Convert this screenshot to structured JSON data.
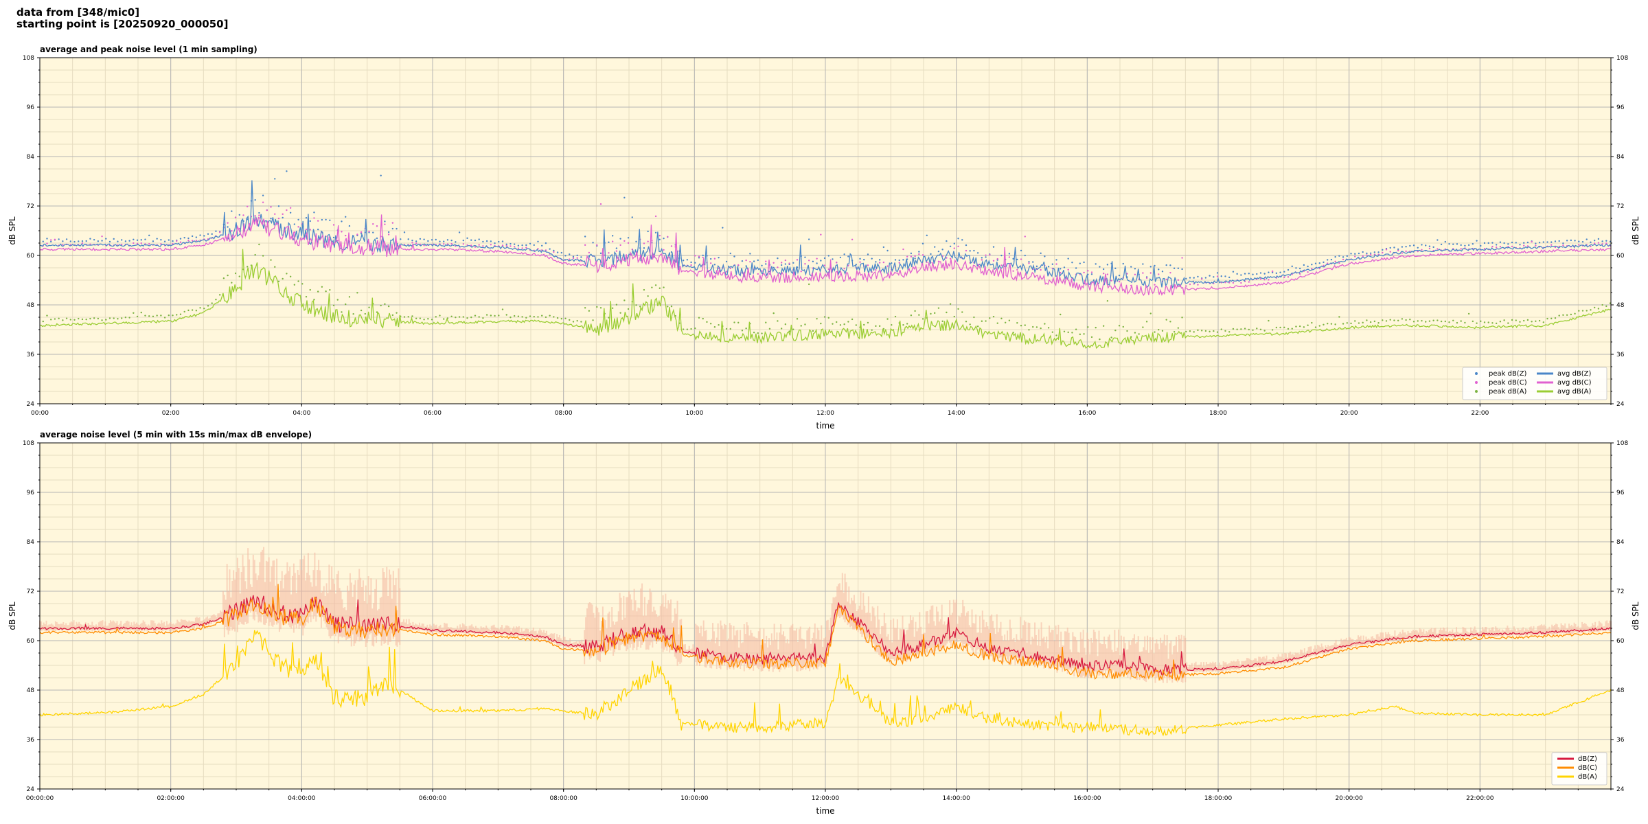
{
  "header": {
    "line1": "data from [348/mic0]",
    "line2": "starting point is [20250920_000050]"
  },
  "colors": {
    "plot_bg": "#fff7dc",
    "grid_major": "#b5b5b5",
    "grid_minor": "#e6dcc0",
    "zc": "#4a86c8",
    "cc": "#e060d0",
    "ac": "#9acd32",
    "zc_panel2": "#d7193f",
    "cc_panel2": "#ff8c00",
    "ac_panel2": "#ffd400",
    "envelope": "#f4b8a0"
  },
  "chart_data": [
    {
      "type": "line",
      "title": "average and peak noise level (1 min sampling)",
      "xlabel": "time",
      "ylabel": "dB SPL",
      "ylim": [
        24,
        108
      ],
      "yticks": [
        "24",
        "36",
        "48",
        "60",
        "72",
        "84",
        "96",
        "108"
      ],
      "xlim_hours": [
        0,
        24
      ],
      "xticks": [
        "00:00",
        "02:00",
        "04:00",
        "06:00",
        "08:00",
        "10:00",
        "12:00",
        "14:00",
        "16:00",
        "18:00",
        "20:00",
        "22:00"
      ],
      "grid": true,
      "legend_position": "bottom-right",
      "legend": [
        {
          "label": "peak dB(Z)",
          "kind": "dot",
          "color": "#4a86c8"
        },
        {
          "label": "peak dB(C)",
          "kind": "dot",
          "color": "#e060d0"
        },
        {
          "label": "peak dB(A)",
          "kind": "dot",
          "color": "#7cb342"
        },
        {
          "label": "avg dB(Z)",
          "kind": "line",
          "color": "#4a86c8"
        },
        {
          "label": "avg dB(C)",
          "kind": "line",
          "color": "#e060d0"
        },
        {
          "label": "avg dB(A)",
          "kind": "line",
          "color": "#9acd32"
        }
      ],
      "series": [
        {
          "name": "avg dB(Z)",
          "color": "#4a86c8",
          "hours": [
            0,
            1,
            2,
            2.5,
            3,
            3.3,
            3.6,
            4,
            4.5,
            5,
            5.3,
            6,
            7,
            7.7,
            8,
            8.5,
            9,
            9.5,
            9.8,
            10.5,
            11,
            12,
            13,
            13.5,
            14,
            14.5,
            15,
            15.5,
            16,
            16.5,
            17,
            18,
            19,
            20,
            20.7,
            21,
            22,
            23,
            24
          ],
          "values": [
            62.5,
            62.5,
            62.5,
            63.5,
            66,
            69,
            67,
            65,
            63.5,
            63,
            62.5,
            62.5,
            62,
            61,
            59,
            58.5,
            60,
            61,
            57.5,
            56.5,
            56,
            56.5,
            57,
            59,
            60,
            58,
            57,
            56,
            54,
            54,
            53.5,
            53.5,
            55,
            59,
            60.5,
            61,
            61.5,
            62,
            62.5
          ]
        },
        {
          "name": "avg dB(C)",
          "color": "#e060d0",
          "hours": [
            0,
            1,
            2,
            2.5,
            3,
            3.3,
            3.6,
            4,
            4.5,
            5,
            5.3,
            6,
            7,
            7.7,
            8,
            8.5,
            9,
            9.5,
            9.8,
            10.5,
            11,
            12,
            13,
            13.5,
            14,
            14.5,
            15,
            15.5,
            16,
            16.5,
            17,
            18,
            19,
            20,
            20.7,
            21,
            22,
            23,
            24
          ],
          "values": [
            61.5,
            61.5,
            61.5,
            62.5,
            65,
            68,
            66,
            64,
            62.5,
            62,
            61.5,
            61.5,
            61,
            60,
            58,
            57.5,
            59,
            60,
            56.5,
            55,
            54.5,
            55,
            55,
            57,
            58,
            56,
            55,
            54,
            52.5,
            52,
            51.5,
            52,
            53.5,
            58,
            59.5,
            60,
            60.5,
            61,
            61.5
          ]
        },
        {
          "name": "avg dB(A)",
          "color": "#9acd32",
          "hours": [
            0,
            1,
            2,
            2.5,
            3,
            3.3,
            3.6,
            4,
            4.5,
            5,
            5.3,
            6,
            7,
            7.7,
            8,
            8.5,
            9,
            9.5,
            9.8,
            10.5,
            11,
            12,
            13,
            13.5,
            14,
            14.5,
            15,
            15.5,
            16,
            16.5,
            17,
            18,
            19,
            20,
            20.7,
            21,
            22,
            23,
            24
          ],
          "values": [
            43,
            43.5,
            44,
            46,
            52,
            57,
            53,
            48,
            45,
            44.5,
            44,
            43.5,
            44,
            44,
            43.5,
            42,
            45,
            49,
            41,
            40,
            40,
            41,
            41,
            43,
            43,
            41,
            40,
            39.5,
            38.5,
            39,
            40,
            40.5,
            41,
            42.5,
            43,
            43,
            42.5,
            43,
            47
          ]
        }
      ]
    },
    {
      "type": "line",
      "title": "average noise level (5 min with 15s min/max dB envelope)",
      "xlabel": "time",
      "ylabel": "dB SPL",
      "ylim": [
        24,
        108
      ],
      "yticks": [
        "24",
        "36",
        "48",
        "60",
        "72",
        "84",
        "96",
        "108"
      ],
      "xlim_hours": [
        0,
        24
      ],
      "xticks": [
        "00:00:00",
        "02:00:00",
        "04:00:00",
        "06:00:00",
        "08:00:00",
        "10:00:00",
        "12:00:00",
        "14:00:00",
        "16:00:00",
        "18:00:00",
        "20:00:00",
        "22:00:00"
      ],
      "grid": true,
      "legend_position": "bottom-right",
      "legend": [
        {
          "label": "dB(Z)",
          "kind": "line",
          "color": "#d7193f"
        },
        {
          "label": "dB(C)",
          "kind": "line",
          "color": "#ff8c00"
        },
        {
          "label": "dB(A)",
          "kind": "line",
          "color": "#ffd400"
        }
      ],
      "series": [
        {
          "name": "dB(Z)",
          "color": "#d7193f",
          "hours": [
            0,
            1,
            2,
            2.5,
            3,
            3.3,
            3.6,
            4,
            4.2,
            4.5,
            5,
            5.3,
            6,
            7,
            7.7,
            8,
            8.5,
            9,
            9.5,
            9.8,
            10.5,
            11,
            12,
            12.2,
            13,
            13.5,
            14,
            14.5,
            15,
            15.5,
            16,
            16.5,
            17,
            18,
            19,
            20,
            20.7,
            21,
            22,
            23,
            24
          ],
          "values": [
            63,
            63,
            63,
            64,
            67,
            70,
            67,
            66,
            70,
            64,
            63.5,
            64,
            62.5,
            62,
            61,
            59,
            58.5,
            62,
            62,
            57.5,
            56,
            55.5,
            56,
            69,
            57,
            59,
            62,
            58,
            57,
            55.5,
            54,
            54,
            53,
            53,
            55,
            59,
            60.5,
            61,
            61.5,
            62,
            63
          ]
        },
        {
          "name": "dB(C)",
          "color": "#ff8c00",
          "hours": [
            0,
            1,
            2,
            2.5,
            3,
            3.3,
            3.6,
            4,
            4.2,
            4.5,
            5,
            5.3,
            6,
            7,
            7.7,
            8,
            8.5,
            9,
            9.5,
            9.8,
            10.5,
            11,
            12,
            12.2,
            13,
            13.5,
            14,
            14.5,
            15,
            15.5,
            16,
            16.5,
            17,
            18,
            19,
            20,
            20.7,
            21,
            22,
            23,
            24
          ],
          "values": [
            62,
            62,
            62,
            63,
            66,
            69,
            66,
            65,
            69,
            63,
            62.5,
            63,
            61.5,
            61,
            60,
            58,
            57.5,
            61,
            61,
            56.5,
            55,
            54.5,
            54.5,
            68,
            55,
            57,
            59,
            56,
            55,
            54,
            52,
            52,
            51.5,
            52,
            53.5,
            58,
            59.5,
            60,
            60.5,
            61,
            62
          ]
        },
        {
          "name": "dB(A)",
          "color": "#ffd400",
          "hours": [
            0,
            1,
            2,
            2.5,
            3,
            3.3,
            3.6,
            4,
            4.2,
            4.5,
            5,
            5.3,
            6,
            7,
            7.7,
            8,
            8.5,
            9,
            9.5,
            9.8,
            10.5,
            11,
            12,
            12.2,
            13,
            13.5,
            14,
            14.5,
            15,
            15.5,
            16,
            16.5,
            17,
            18,
            19,
            20,
            20.7,
            21,
            22,
            23,
            24
          ],
          "values": [
            42,
            42.5,
            44,
            47,
            54,
            62,
            55,
            51,
            56,
            46,
            46,
            50,
            43,
            43,
            43.5,
            43,
            42,
            48,
            53,
            40,
            39,
            39,
            40,
            51,
            40,
            41,
            44,
            41,
            40,
            39,
            39,
            38.5,
            38,
            39.5,
            41,
            42,
            44,
            42.5,
            42,
            42,
            48
          ]
        }
      ]
    }
  ]
}
